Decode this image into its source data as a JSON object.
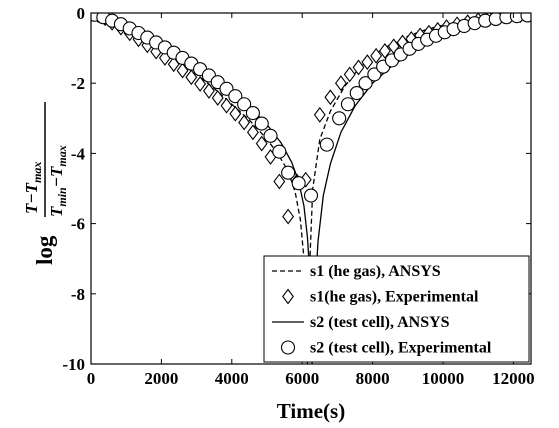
{
  "chart_data": {
    "type": "line",
    "xlabel": "Time(s)",
    "ylabel": {
      "prefix": "log",
      "numerator": "T−T",
      "numerator_sub": "max",
      "denominator_a": "T",
      "denominator_a_sub": "min",
      "denominator_b": "−T",
      "denominator_b_sub": "max"
    },
    "xlim": [
      0,
      12500
    ],
    "ylim": [
      -10,
      0
    ],
    "xticks": [
      0,
      2000,
      4000,
      6000,
      8000,
      10000,
      12000
    ],
    "yticks": [
      0,
      -2,
      -4,
      -6,
      -8,
      -10
    ],
    "xtick_labels": [
      "0",
      "2000",
      "4000",
      "6000",
      "8000",
      "10000",
      "12000"
    ],
    "ytick_labels": [
      "0",
      "-2",
      "-4",
      "-6",
      "-8",
      "-10"
    ],
    "grid": false,
    "legend_position": "bottom-right",
    "series": [
      {
        "name": "s1 (he gas), ANSYS",
        "style": "dashed-line",
        "x": [
          0,
          300,
          600,
          1000,
          1500,
          2000,
          2500,
          3000,
          3500,
          4000,
          4500,
          5000,
          5300,
          5600,
          5800,
          5950,
          6050,
          6100,
          6150,
          6200,
          6300,
          6500,
          6800,
          7200,
          7600,
          8000,
          8500,
          9000,
          9500,
          10000,
          10500,
          11000,
          11500,
          12000,
          12400
        ],
        "y": [
          0,
          -0.08,
          -0.22,
          -0.42,
          -0.72,
          -1.05,
          -1.4,
          -1.75,
          -2.15,
          -2.6,
          -3.05,
          -3.6,
          -4.0,
          -4.5,
          -5.1,
          -5.9,
          -7.0,
          -8.3,
          -10.0,
          -7.5,
          -5.0,
          -3.6,
          -2.8,
          -2.1,
          -1.6,
          -1.22,
          -0.9,
          -0.66,
          -0.48,
          -0.34,
          -0.23,
          -0.15,
          -0.09,
          -0.05,
          -0.03
        ]
      },
      {
        "name": "s1(he gas), Experimental",
        "style": "diamond-markers",
        "x": [
          0,
          200,
          400,
          600,
          850,
          1100,
          1350,
          1600,
          1850,
          2100,
          2350,
          2600,
          2850,
          3100,
          3350,
          3600,
          3850,
          4100,
          4350,
          4600,
          4850,
          5100,
          5350,
          5600,
          5850,
          6100,
          6500,
          6800,
          7100,
          7350,
          7600,
          7850,
          8100,
          8350,
          8600,
          8850,
          9100,
          9350,
          9600,
          9850,
          10100,
          10400,
          10700,
          11000,
          11300,
          11600,
          11900,
          12200
        ],
        "y": [
          0,
          -0.06,
          -0.15,
          -0.28,
          -0.42,
          -0.58,
          -0.75,
          -0.92,
          -1.1,
          -1.28,
          -1.46,
          -1.64,
          -1.83,
          -2.02,
          -2.22,
          -2.42,
          -2.64,
          -2.87,
          -3.12,
          -3.4,
          -3.72,
          -4.1,
          -4.8,
          -5.8,
          -4.8,
          -4.75,
          -2.9,
          -2.4,
          -2.0,
          -1.75,
          -1.55,
          -1.4,
          -1.22,
          -1.08,
          -0.95,
          -0.84,
          -0.74,
          -0.64,
          -0.56,
          -0.48,
          -0.4,
          -0.32,
          -0.26,
          -0.2,
          -0.15,
          -0.11,
          -0.08,
          -0.06
        ]
      },
      {
        "name": "s2 (test cell), ANSYS",
        "style": "solid-line",
        "x": [
          0,
          300,
          600,
          1000,
          1500,
          2000,
          2500,
          3000,
          3500,
          4000,
          4500,
          5000,
          5400,
          5700,
          5900,
          6050,
          6150,
          6220,
          6280,
          6350,
          6450,
          6600,
          6800,
          7100,
          7500,
          8000,
          8500,
          9000,
          9500,
          10000,
          10500,
          11000,
          11500,
          12000,
          12400
        ],
        "y": [
          0,
          -0.06,
          -0.18,
          -0.34,
          -0.58,
          -0.86,
          -1.16,
          -1.47,
          -1.82,
          -2.22,
          -2.66,
          -3.18,
          -3.7,
          -4.25,
          -4.8,
          -5.5,
          -6.4,
          -7.5,
          -10.0,
          -8.2,
          -6.5,
          -5.2,
          -4.3,
          -3.4,
          -2.65,
          -2.0,
          -1.55,
          -1.2,
          -0.92,
          -0.7,
          -0.52,
          -0.37,
          -0.25,
          -0.16,
          -0.1
        ]
      },
      {
        "name": "s2 (test cell), Experimental",
        "style": "circle-markers",
        "x": [
          100,
          350,
          600,
          850,
          1100,
          1350,
          1600,
          1850,
          2100,
          2350,
          2600,
          2850,
          3100,
          3350,
          3600,
          3850,
          4100,
          4350,
          4600,
          4850,
          5100,
          5350,
          5600,
          5900,
          6250,
          6700,
          7050,
          7300,
          7550,
          7800,
          8050,
          8300,
          8550,
          8800,
          9050,
          9300,
          9550,
          9800,
          10050,
          10300,
          10600,
          10900,
          11200,
          11500,
          11800,
          12100,
          12400
        ],
        "y": [
          -0.05,
          -0.12,
          -0.22,
          -0.32,
          -0.44,
          -0.57,
          -0.7,
          -0.84,
          -0.98,
          -1.13,
          -1.28,
          -1.44,
          -1.6,
          -1.78,
          -1.97,
          -2.16,
          -2.37,
          -2.6,
          -2.85,
          -3.15,
          -3.5,
          -3.95,
          -4.55,
          -4.85,
          -5.2,
          -3.75,
          -3.0,
          -2.6,
          -2.28,
          -2.0,
          -1.75,
          -1.53,
          -1.35,
          -1.18,
          -1.02,
          -0.88,
          -0.76,
          -0.65,
          -0.55,
          -0.46,
          -0.37,
          -0.29,
          -0.22,
          -0.17,
          -0.12,
          -0.09,
          -0.07
        ]
      }
    ]
  }
}
